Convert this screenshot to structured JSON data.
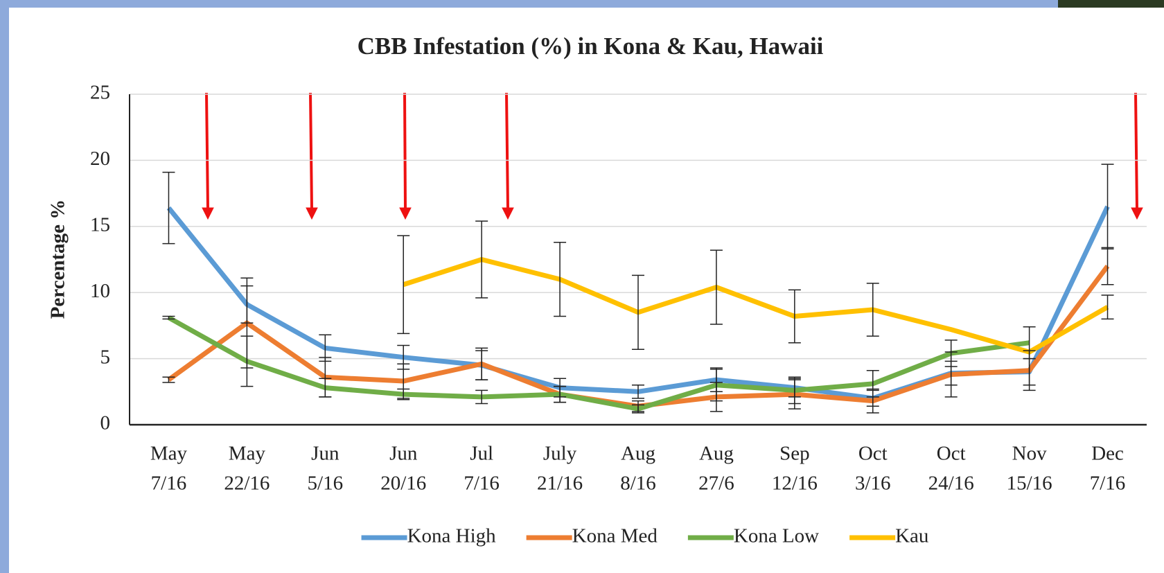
{
  "chart_data": {
    "type": "line",
    "title": "CBB Infestation (%) in Kona & Kau, Hawaii",
    "y_label": "Percentage %",
    "categories": [
      [
        "May",
        "7/16"
      ],
      [
        "May",
        "22/16"
      ],
      [
        "Jun",
        "5/16"
      ],
      [
        "Jun",
        "20/16"
      ],
      [
        "Jul",
        "7/16"
      ],
      [
        "July",
        "21/16"
      ],
      [
        "Aug",
        "8/16"
      ],
      [
        "Aug",
        "27/6"
      ],
      [
        "Sep",
        "12/16"
      ],
      [
        "Oct",
        "3/16"
      ],
      [
        "Oct",
        "24/16"
      ],
      [
        "Nov",
        "15/16"
      ],
      [
        "Dec",
        "7/16"
      ]
    ],
    "series": [
      {
        "name": "Kona High",
        "color": "#5b9bd5",
        "values": [
          16.4,
          9.1,
          5.8,
          5.1,
          4.5,
          2.8,
          2.5,
          3.4,
          2.8,
          2.0,
          3.9,
          4.0,
          16.5
        ],
        "errors": [
          2.7,
          1.4,
          1.0,
          0.9,
          1.1,
          0.7,
          0.5,
          0.9,
          0.7,
          0.6,
          0.9,
          1.0,
          3.2
        ]
      },
      {
        "name": "Kona Med",
        "color": "#ed7d31",
        "values": [
          3.4,
          7.7,
          3.6,
          3.3,
          4.6,
          2.3,
          1.4,
          2.1,
          2.3,
          1.8,
          3.8,
          4.1,
          12.0
        ],
        "errors": [
          0.2,
          3.4,
          1.5,
          1.3,
          1.2,
          0.6,
          0.4,
          1.1,
          1.1,
          0.9,
          1.7,
          1.5,
          1.4
        ]
      },
      {
        "name": "Kona Low",
        "color": "#70ad47",
        "values": [
          8.1,
          4.8,
          2.8,
          2.3,
          2.1,
          2.3,
          1.2,
          3.0,
          2.6,
          3.1,
          5.4,
          6.2,
          null
        ],
        "errors": [
          0.1,
          1.9,
          0.7,
          0.4,
          0.5,
          0.6,
          0.3,
          1.2,
          1.0,
          1.0,
          1.0,
          1.2,
          null
        ]
      },
      {
        "name": "Kau",
        "color": "#ffc000",
        "values": [
          null,
          null,
          null,
          10.6,
          12.5,
          11.0,
          8.5,
          10.4,
          8.2,
          8.7,
          7.2,
          5.5,
          8.9
        ],
        "errors": [
          null,
          null,
          null,
          3.7,
          2.9,
          2.8,
          2.8,
          2.8,
          2.0,
          2.0,
          null,
          null,
          0.9
        ]
      }
    ],
    "ylim": [
      0,
      25
    ],
    "yticks": [
      0,
      5,
      10,
      15,
      20,
      25
    ],
    "grid": true,
    "legend": "bottom"
  }
}
